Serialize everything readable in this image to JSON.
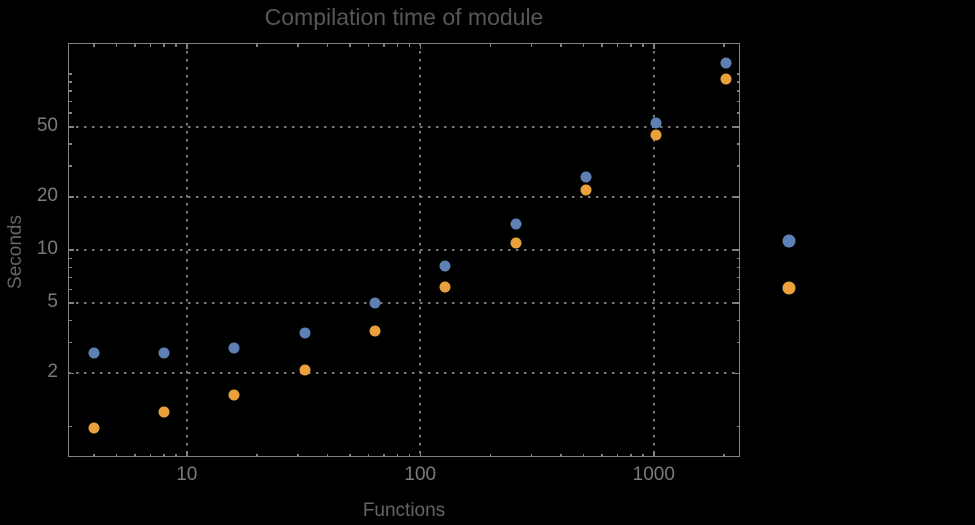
{
  "title": "Compilation time of module",
  "axes": {
    "xlabel": "Functions",
    "ylabel": "Seconds"
  },
  "colors": {
    "background": "#000000",
    "frame": "#828282",
    "grid": "#787878",
    "title_text": "#575757",
    "axis_label_text": "#646464",
    "tick_label_text": "#7b7b7b",
    "series1": "#5e81b5",
    "series2": "#e9a13c"
  },
  "legend": {
    "markers": [
      {
        "name": "series-1-marker",
        "color": "#5e81b5"
      },
      {
        "name": "series-2-marker",
        "color": "#e9a13c"
      }
    ]
  },
  "chart_data": {
    "type": "scatter",
    "title": "Compilation time of module",
    "xlabel": "Functions",
    "ylabel": "Seconds",
    "x_scale": "log",
    "y_scale": "log",
    "xlim": [
      3.1,
      2340
    ],
    "ylim": [
      0.67,
      150
    ],
    "x_ticks": [
      10,
      100,
      1000
    ],
    "y_ticks": [
      2,
      5,
      10,
      20,
      50
    ],
    "grid": true,
    "legend_position": "right-outside",
    "x": [
      4,
      8,
      16,
      32,
      64,
      128,
      256,
      512,
      1024,
      2048
    ],
    "series": [
      {
        "name": "series-1",
        "color": "#5e81b5",
        "values": [
          2.6,
          2.6,
          2.8,
          3.4,
          5.0,
          8.1,
          14,
          26,
          53,
          115
        ]
      },
      {
        "name": "series-2",
        "color": "#e9a13c",
        "values": [
          0.98,
          1.2,
          1.5,
          2.1,
          3.5,
          6.2,
          11,
          22,
          45,
          94
        ]
      }
    ]
  }
}
